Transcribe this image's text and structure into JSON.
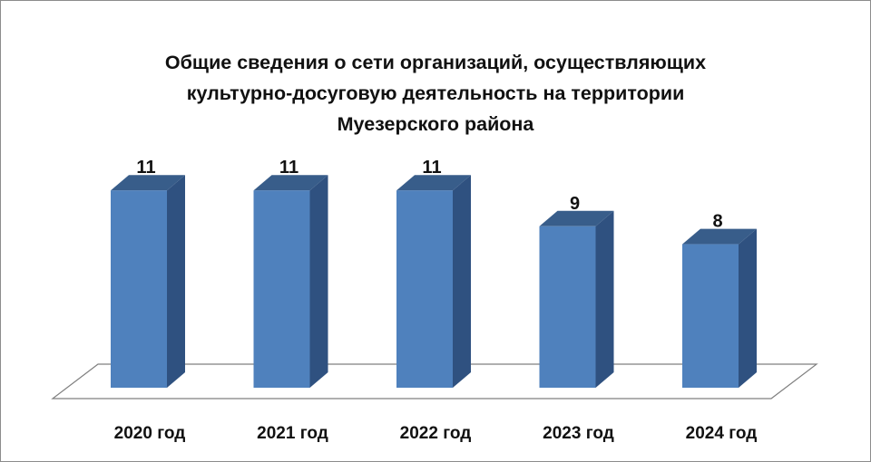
{
  "chart_data": {
    "type": "bar",
    "title_lines": [
      "Общие сведения о сети организаций, осуществляющих",
      "культурно-досуговую  деятельность на территории",
      "Муезерского района"
    ],
    "categories": [
      "2020 год",
      "2021 год",
      "2022 год",
      "2023 год",
      "2024 год"
    ],
    "values": [
      11,
      11,
      11,
      9,
      8
    ],
    "data_labels": [
      "11",
      "11",
      "11",
      "9",
      "8"
    ],
    "ylim": [
      0,
      12
    ],
    "grid": false,
    "legend": "none",
    "three_d": true,
    "colors": {
      "bar_front": "#4f81bd",
      "bar_side": "#2f5180",
      "bar_top": "#385d8a",
      "floor_stroke": "#7f7f7f",
      "frame": "#8c8c8c",
      "text": "#111111"
    }
  }
}
